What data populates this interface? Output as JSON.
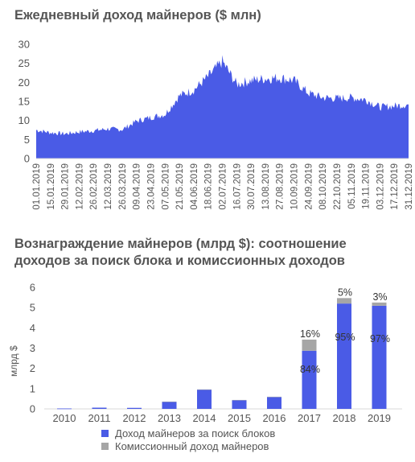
{
  "chart_data": [
    {
      "type": "area",
      "title": "Ежедневный доход майнеров ($ млн)",
      "ylim": [
        0,
        30
      ],
      "yticks": [
        "0",
        "5",
        "10",
        "15",
        "20",
        "25",
        "30"
      ],
      "grid": false,
      "color": "#4a5be6",
      "x": [
        "01.01.2019",
        "15.01.2019",
        "29.01.2019",
        "12.02.2019",
        "26.02.2019",
        "12.03.2019",
        "26.03.2019",
        "09.04.2019",
        "23.04.2019",
        "07.05.2019",
        "21.05.2019",
        "04.06.2019",
        "18.06.2019",
        "02.07.2019",
        "16.07.2019",
        "30.07.2019",
        "13.08.2019",
        "27.08.2019",
        "10.09.2019",
        "24.09.2019",
        "08.10.2019",
        "22.10.2019",
        "05.11.2019",
        "19.11.2019",
        "03.12.2019",
        "17.12.2019",
        "31.12.2019"
      ],
      "values": [
        7.5,
        6.8,
        6.5,
        7.0,
        7.3,
        7.8,
        7.6,
        9.8,
        10.8,
        11.6,
        16.5,
        18.0,
        21.5,
        25.5,
        19.5,
        20.5,
        21.0,
        21.2,
        20.5,
        17.2,
        16.0,
        15.8,
        16.0,
        15.5,
        13.5,
        13.8,
        14.2
      ]
    },
    {
      "type": "bar",
      "title_line1": "Вознаграждение майнеров (млрд $): соотношение",
      "title_line2": "доходов за поиск блока и комиссионных доходов",
      "ylabel": "млрд $",
      "ylim": [
        0,
        6
      ],
      "yticks": [
        "0",
        "1",
        "2",
        "3",
        "4",
        "5",
        "6"
      ],
      "categories": [
        "2010",
        "2011",
        "2012",
        "2013",
        "2014",
        "2015",
        "2016",
        "2017",
        "2018",
        "2019"
      ],
      "series": [
        {
          "name": "Доход майнеров за поиск блоков",
          "color": "#4a5be6",
          "values": [
            0.02,
            0.06,
            0.05,
            0.35,
            0.95,
            0.43,
            0.58,
            2.87,
            5.2,
            5.09
          ],
          "labels": [
            "",
            "",
            "",
            "",
            "",
            "",
            "",
            "84%",
            "95%",
            "97%"
          ]
        },
        {
          "name": "Комиссионный доход майнеров",
          "color": "#a6a6a6",
          "values": [
            0,
            0,
            0,
            0.01,
            0.01,
            0.01,
            0.02,
            0.55,
            0.27,
            0.16
          ],
          "labels": [
            "",
            "",
            "",
            "",
            "",
            "",
            "",
            "16%",
            "5%",
            "3%"
          ]
        }
      ]
    }
  ]
}
